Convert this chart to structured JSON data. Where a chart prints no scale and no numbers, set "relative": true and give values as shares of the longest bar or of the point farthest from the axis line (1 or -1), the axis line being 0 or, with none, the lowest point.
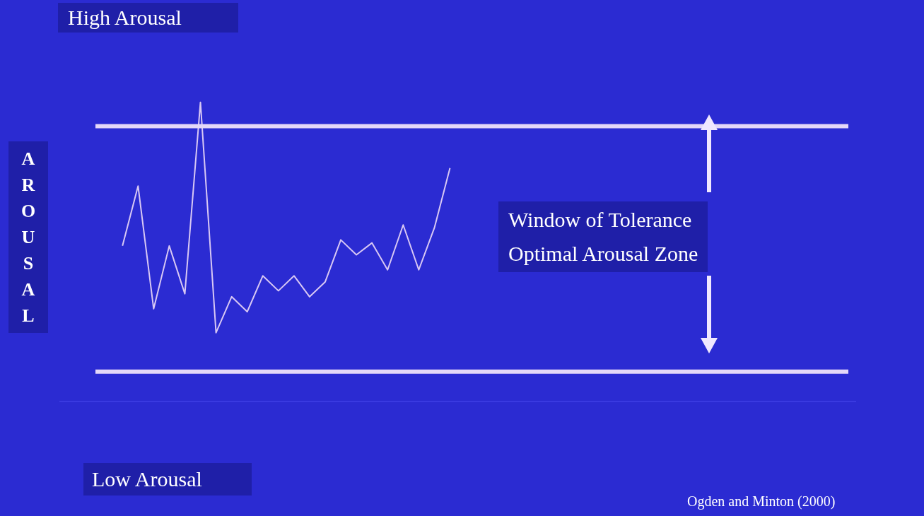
{
  "chart_data": {
    "type": "line",
    "title": "High Arousal",
    "ylabel": "AROUSAL",
    "relative": true,
    "color": "#d8c8f4",
    "categories": [
      null,
      null,
      null,
      null,
      null,
      null,
      null,
      null,
      null,
      null,
      null,
      null,
      null,
      null,
      null,
      null,
      null,
      null,
      null,
      null,
      null,
      null,
      null,
      null,
      null,
      null,
      null,
      null,
      null,
      null,
      null,
      null,
      null,
      null,
      null,
      null,
      null,
      null,
      null,
      null,
      null,
      null,
      null,
      null,
      null,
      null,
      null,
      null,
      null,
      null,
      null,
      null
    ],
    "values": [
      null,
      null,
      null,
      null,
      0.52,
      0.72,
      0.31,
      0.52,
      0.36,
      1,
      0.23,
      0.35,
      0.3,
      0.42,
      0.37,
      0.42,
      0.35,
      0.4,
      0.54,
      0.49,
      0.53,
      0.44,
      0.59,
      0.44,
      0.58,
      0.78,
      null,
      null,
      null,
      null,
      null,
      null,
      null,
      null,
      null,
      null,
      null,
      null,
      null,
      null,
      null,
      null,
      null,
      null,
      null,
      null,
      null,
      null,
      null,
      null,
      null,
      null
    ],
    "ref_lines": [
      {
        "axis": "y",
        "value": 0.92,
        "color": "#e4d8f8"
      },
      {
        "axis": "y",
        "value": 0.1,
        "color": "#e4d8f8"
      }
    ],
    "annotations": [
      "Window of Tolerance\nOptimal Arousal Zone",
      "Low Arousal",
      "Ogden and Minton (2000)"
    ],
    "grid": false,
    "legend": false,
    "marker": "none",
    "line_style": "solid"
  }
}
